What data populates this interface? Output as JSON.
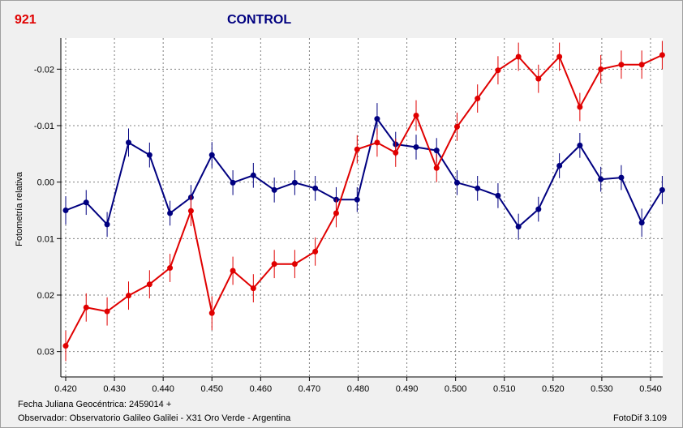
{
  "header": {
    "object_id": "921",
    "title": "CONTROL"
  },
  "footer": {
    "julian_date": "Fecha Juliana Geocéntrica: 2459014 +",
    "observer": "Observador: Observatorio Galileo Galilei - X31 Oro Verde - Argentina",
    "software": "FotoDif 3.109"
  },
  "chart_data": {
    "type": "scatter",
    "title": "CONTROL",
    "xlabel": "",
    "ylabel": "Fotometría relativa",
    "xlim": [
      0.419,
      0.5425
    ],
    "ylim": [
      0.0345,
      -0.0255
    ],
    "y_inverted": true,
    "grid": true,
    "x_ticks": [
      "0.420",
      "0.430",
      "0.440",
      "0.450",
      "0.460",
      "0.470",
      "0.480",
      "0.490",
      "0.500",
      "0.510",
      "0.520",
      "0.530",
      "0.540"
    ],
    "x_tick_values": [
      0.42,
      0.43,
      0.44,
      0.45,
      0.46,
      0.47,
      0.48,
      0.49,
      0.5,
      0.51,
      0.52,
      0.53,
      0.54
    ],
    "y_ticks": [
      "-0.02",
      "-0.01",
      "0.00",
      "0.01",
      "0.02",
      "0.03"
    ],
    "y_tick_values": [
      -0.02,
      -0.01,
      0.0,
      0.01,
      0.02,
      0.03
    ],
    "series": [
      {
        "color": "#000080",
        "x": [
          0.42,
          0.4242,
          0.4285,
          0.4329,
          0.4372,
          0.4414,
          0.4457,
          0.45,
          0.4543,
          0.4585,
          0.4628,
          0.467,
          0.4712,
          0.4755,
          0.4798,
          0.4839,
          0.4877,
          0.4919,
          0.4961,
          0.5003,
          0.5045,
          0.5087,
          0.5129,
          0.517,
          0.5213,
          0.5255,
          0.5298,
          0.534,
          0.5382,
          0.5424
        ],
        "y": [
          0.005,
          0.0036,
          0.0075,
          -0.007,
          -0.0048,
          0.0055,
          0.0027,
          -0.0048,
          0.0001,
          -0.0012,
          0.0014,
          0.0001,
          0.0011,
          0.0031,
          0.0031,
          -0.0112,
          -0.0067,
          -0.0062,
          -0.0056,
          0.0001,
          0.0011,
          0.0024,
          0.0079,
          0.0048,
          -0.0029,
          -0.0065,
          -0.0005,
          -0.0008,
          0.0072,
          0.0014
        ],
        "err": [
          0.0025,
          0.0022,
          0.0022,
          0.0025,
          0.0022,
          0.0022,
          0.0022,
          0.0023,
          0.0022,
          0.0022,
          0.0022,
          0.0022,
          0.0022,
          0.0022,
          0.0022,
          0.0028,
          0.0022,
          0.0022,
          0.0022,
          0.0022,
          0.0022,
          0.0022,
          0.0023,
          0.0022,
          0.0022,
          0.0022,
          0.0022,
          0.0022,
          0.0025,
          0.0025
        ]
      },
      {
        "color": "#e00000",
        "x": [
          0.42,
          0.4242,
          0.4285,
          0.4329,
          0.4372,
          0.4414,
          0.4457,
          0.45,
          0.4543,
          0.4585,
          0.4628,
          0.467,
          0.4712,
          0.4755,
          0.4798,
          0.4839,
          0.4877,
          0.4919,
          0.4961,
          0.5003,
          0.5045,
          0.5087,
          0.5129,
          0.517,
          0.5213,
          0.5255,
          0.5298,
          0.534,
          0.5382,
          0.5424
        ],
        "y": [
          0.029,
          0.0222,
          0.0229,
          0.0201,
          0.0181,
          0.0152,
          0.0051,
          0.0232,
          0.0157,
          0.0188,
          0.0145,
          0.0145,
          0.0123,
          0.0055,
          -0.0058,
          -0.007,
          -0.0052,
          -0.0118,
          -0.0025,
          -0.0098,
          -0.0148,
          -0.0198,
          -0.0222,
          -0.0183,
          -0.0222,
          -0.0133,
          -0.02,
          -0.0208,
          -0.0208,
          -0.0225
        ],
        "err": [
          0.0027,
          0.0025,
          0.0025,
          0.0025,
          0.0025,
          0.0025,
          0.0027,
          0.003,
          0.0025,
          0.0025,
          0.0025,
          0.0025,
          0.0025,
          0.0025,
          0.0025,
          0.0025,
          0.0025,
          0.0027,
          0.0025,
          0.0025,
          0.0025,
          0.0025,
          0.0025,
          0.0025,
          0.0025,
          0.0025,
          0.0025,
          0.0025,
          0.0025,
          0.0025
        ]
      }
    ]
  }
}
